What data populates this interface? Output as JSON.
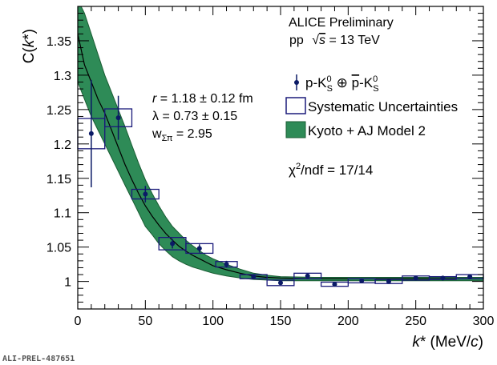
{
  "figure_id": "ALI-PREL-487651",
  "colors": {
    "data": "#0b1a66",
    "syst_box": "#1a1a7a",
    "band_fill": "#2e8b57",
    "band_stroke": "#1a5c33",
    "model_line": "#000000",
    "axis": "#000000"
  },
  "chart_data": {
    "type": "scatter",
    "xlabel": "k* (MeV/c)",
    "ylabel": "C(k*)",
    "xlim": [
      0,
      300
    ],
    "ylim": [
      0.96,
      1.4
    ],
    "x_ticks": [
      0,
      50,
      100,
      150,
      200,
      250,
      300
    ],
    "y_ticks": [
      1,
      1.05,
      1.1,
      1.15,
      1.2,
      1.25,
      1.3,
      1.35
    ],
    "y_tick_labels": [
      "1",
      "1.05",
      "1.1",
      "1.15",
      "1.2",
      "1.25",
      "1.3",
      "1.35"
    ],
    "grid": false,
    "legend_position": "top-right",
    "header": {
      "line1": "ALICE Preliminary",
      "line2_prefix": "pp",
      "line2_sqrt": "√",
      "line2_s": "s",
      "line2_suffix": " = 13 TeV"
    },
    "legend": [
      {
        "kind": "data",
        "label": "p-K⁰S ⊕ p̄-K⁰S"
      },
      {
        "kind": "box",
        "label": "Systematic Uncertainties"
      },
      {
        "kind": "band",
        "label": "Kyoto + AJ Model 2"
      }
    ],
    "fit_params": [
      "r = 1.18 ± 0.12 fm",
      "λ = 0.73 ± 0.15",
      "wΣπ = 2.95"
    ],
    "chi2": "χ²/ndf = 17/14",
    "series": [
      {
        "kind": "data",
        "x": [
          10,
          30,
          50,
          70,
          90,
          110,
          130,
          150,
          170,
          190,
          210,
          230,
          250,
          270,
          290
        ],
        "y": [
          1.215,
          1.238,
          1.127,
          1.055,
          1.048,
          1.025,
          1.007,
          0.998,
          1.008,
          0.996,
          1.001,
          1.0,
          1.005,
          1.005,
          1.007
        ],
        "stat_err": [
          0.078,
          0.032,
          0.012,
          0.007,
          0.006,
          0.005,
          0.003,
          0.003,
          0.003,
          0.003,
          0.003,
          0.003,
          0.002,
          0.002,
          0.002
        ],
        "sys_halfwidth": [
          10,
          10,
          10,
          10,
          10,
          8,
          10,
          10,
          10,
          10,
          10,
          10,
          10,
          10,
          10
        ],
        "sys_err": [
          0.022,
          0.013,
          0.007,
          0.009,
          0.007,
          0.004,
          0.003,
          0.004,
          0.004,
          0.003,
          0.003,
          0.003,
          0.003,
          0.002,
          0.003
        ]
      },
      {
        "kind": "model_band",
        "x": [
          0,
          5,
          10,
          15,
          20,
          25,
          30,
          35,
          40,
          45,
          50,
          55,
          60,
          65,
          70,
          75,
          80,
          85,
          90,
          95,
          100,
          110,
          120,
          130,
          140,
          150,
          175,
          200,
          250,
          300
        ],
        "lower": [
          1.29,
          1.265,
          1.24,
          1.22,
          1.2,
          1.18,
          1.16,
          1.14,
          1.12,
          1.1,
          1.08,
          1.068,
          1.055,
          1.045,
          1.036,
          1.03,
          1.025,
          1.021,
          1.018,
          1.015,
          1.012,
          1.008,
          1.005,
          1.003,
          1.002,
          1.001,
          1.001,
          1.001,
          1.001,
          1.001
        ],
        "center": [
          1.36,
          1.315,
          1.29,
          1.265,
          1.245,
          1.22,
          1.195,
          1.17,
          1.148,
          1.128,
          1.11,
          1.095,
          1.082,
          1.07,
          1.06,
          1.051,
          1.044,
          1.038,
          1.033,
          1.028,
          1.023,
          1.017,
          1.012,
          1.008,
          1.006,
          1.005,
          1.004,
          1.004,
          1.004,
          1.004
        ],
        "upper": [
          1.41,
          1.39,
          1.36,
          1.33,
          1.3,
          1.275,
          1.25,
          1.225,
          1.198,
          1.172,
          1.148,
          1.128,
          1.11,
          1.094,
          1.08,
          1.07,
          1.06,
          1.052,
          1.045,
          1.038,
          1.033,
          1.025,
          1.018,
          1.012,
          1.009,
          1.007,
          1.006,
          1.006,
          1.006,
          1.006
        ]
      }
    ]
  }
}
